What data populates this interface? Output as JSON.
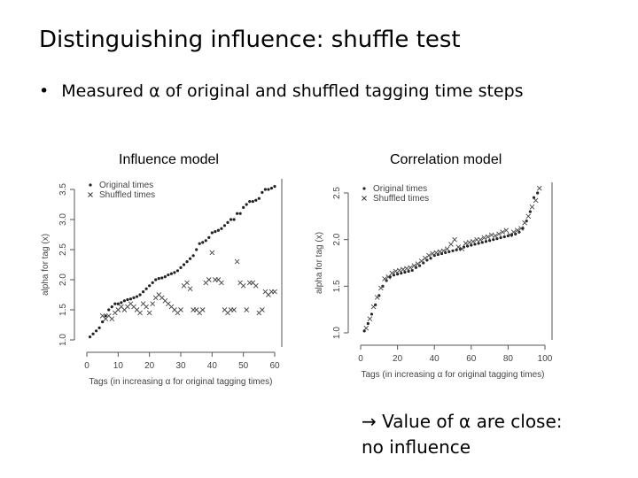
{
  "slide": {
    "title": "Distinguishing influence: shuffle test",
    "bullet": "Measured α of original and shuffled tagging time steps",
    "note_line1": "→ Value of α are close:",
    "note_line2": "no influence"
  },
  "chart_data": [
    {
      "type": "scatter",
      "title": "Influence model",
      "xlabel": "Tags (in increasing α for original tagging times)",
      "ylabel": "alpha for tag (x)",
      "xlim": [
        0,
        60
      ],
      "ylim": [
        1.0,
        3.5
      ],
      "xticks": [
        0,
        10,
        20,
        30,
        40,
        50,
        60
      ],
      "yticks": [
        1.0,
        1.5,
        2.0,
        2.5,
        3.0,
        3.5
      ],
      "legend_position": "top-left",
      "series": [
        {
          "name": "Original times",
          "marker": "dot",
          "x": [
            1,
            2,
            3,
            4,
            5,
            6,
            7,
            8,
            9,
            10,
            11,
            12,
            13,
            14,
            15,
            16,
            17,
            18,
            19,
            20,
            21,
            22,
            23,
            24,
            25,
            26,
            27,
            28,
            29,
            30,
            31,
            32,
            33,
            34,
            35,
            36,
            37,
            38,
            39,
            40,
            41,
            42,
            43,
            44,
            45,
            46,
            47,
            48,
            49,
            50,
            51,
            52,
            53,
            54,
            55,
            56,
            57,
            58,
            59,
            60
          ],
          "y": [
            1.05,
            1.1,
            1.15,
            1.2,
            1.3,
            1.4,
            1.5,
            1.55,
            1.6,
            1.6,
            1.62,
            1.65,
            1.67,
            1.68,
            1.7,
            1.72,
            1.75,
            1.8,
            1.85,
            1.9,
            1.95,
            2.0,
            2.02,
            2.03,
            2.05,
            2.08,
            2.1,
            2.12,
            2.15,
            2.2,
            2.25,
            2.3,
            2.35,
            2.4,
            2.5,
            2.6,
            2.62,
            2.65,
            2.7,
            2.78,
            2.8,
            2.82,
            2.85,
            2.9,
            2.95,
            3.0,
            3.0,
            3.1,
            3.1,
            3.2,
            3.25,
            3.3,
            3.3,
            3.32,
            3.35,
            3.45,
            3.5,
            3.5,
            3.52,
            3.55
          ]
        },
        {
          "name": "Shuffled times",
          "marker": "x",
          "x": [
            5,
            6,
            7,
            8,
            9,
            10,
            11,
            12,
            13,
            14,
            15,
            16,
            17,
            18,
            19,
            20,
            21,
            22,
            23,
            24,
            25,
            26,
            27,
            28,
            29,
            30,
            31,
            32,
            33,
            34,
            35,
            36,
            37,
            38,
            39,
            40,
            41,
            42,
            43,
            44,
            45,
            46,
            47,
            48,
            49,
            50,
            51,
            52,
            53,
            54,
            55,
            56,
            57,
            58,
            59,
            60
          ],
          "y": [
            1.4,
            1.35,
            1.4,
            1.35,
            1.45,
            1.5,
            1.55,
            1.5,
            1.55,
            1.6,
            1.55,
            1.5,
            1.45,
            1.6,
            1.55,
            1.45,
            1.6,
            1.7,
            1.75,
            1.7,
            1.65,
            1.6,
            1.55,
            1.5,
            1.45,
            1.5,
            1.9,
            1.95,
            1.85,
            1.5,
            1.5,
            1.45,
            1.5,
            1.95,
            2.0,
            2.45,
            2.0,
            2.0,
            1.95,
            1.5,
            1.45,
            1.5,
            1.5,
            2.3,
            1.95,
            1.9,
            1.5,
            1.95,
            1.95,
            1.9,
            1.45,
            1.5,
            1.8,
            1.75,
            1.8,
            1.8
          ]
        }
      ]
    },
    {
      "type": "scatter",
      "title": "Correlation model",
      "xlabel": "Tags (in increasing α for original tagging times)",
      "ylabel": "alpha for tag (x)",
      "xlim": [
        0,
        100
      ],
      "ylim": [
        1.0,
        2.5
      ],
      "xticks": [
        0,
        20,
        40,
        60,
        80,
        100
      ],
      "yticks": [
        1.0,
        1.5,
        2.0,
        2.5
      ],
      "legend_position": "top-left",
      "series": [
        {
          "name": "Original times",
          "marker": "dot",
          "x": [
            2,
            4,
            6,
            8,
            10,
            12,
            14,
            16,
            18,
            20,
            22,
            24,
            26,
            28,
            30,
            32,
            34,
            36,
            38,
            40,
            42,
            44,
            46,
            48,
            50,
            52,
            54,
            56,
            58,
            60,
            62,
            64,
            66,
            68,
            70,
            72,
            74,
            76,
            78,
            80,
            82,
            84,
            86,
            88,
            90,
            92,
            94,
            96
          ],
          "y": [
            1.02,
            1.1,
            1.2,
            1.3,
            1.4,
            1.5,
            1.56,
            1.6,
            1.62,
            1.63,
            1.64,
            1.65,
            1.66,
            1.67,
            1.7,
            1.72,
            1.75,
            1.78,
            1.8,
            1.83,
            1.84,
            1.85,
            1.86,
            1.87,
            1.88,
            1.89,
            1.9,
            1.92,
            1.93,
            1.94,
            1.95,
            1.96,
            1.97,
            1.98,
            1.99,
            2.0,
            2.01,
            2.02,
            2.03,
            2.04,
            2.05,
            2.06,
            2.08,
            2.12,
            2.2,
            2.3,
            2.45,
            2.5
          ]
        },
        {
          "name": "Shuffled times",
          "marker": "x",
          "x": [
            3,
            5,
            7,
            9,
            11,
            13,
            15,
            17,
            19,
            21,
            23,
            25,
            27,
            29,
            31,
            33,
            35,
            37,
            39,
            41,
            43,
            45,
            47,
            49,
            51,
            53,
            55,
            57,
            59,
            61,
            63,
            65,
            67,
            69,
            71,
            73,
            75,
            77,
            79,
            81,
            83,
            85,
            87,
            89,
            91,
            93,
            95,
            97
          ],
          "y": [
            1.05,
            1.15,
            1.28,
            1.38,
            1.48,
            1.58,
            1.6,
            1.64,
            1.66,
            1.67,
            1.68,
            1.69,
            1.7,
            1.72,
            1.74,
            1.77,
            1.8,
            1.83,
            1.85,
            1.86,
            1.87,
            1.88,
            1.9,
            1.95,
            2.0,
            1.92,
            1.9,
            1.96,
            1.97,
            1.98,
            2.0,
            2.0,
            2.02,
            2.03,
            2.05,
            2.04,
            2.06,
            2.08,
            2.1,
            2.05,
            2.08,
            2.1,
            2.12,
            2.18,
            2.25,
            2.35,
            2.42,
            2.55
          ]
        }
      ]
    }
  ]
}
